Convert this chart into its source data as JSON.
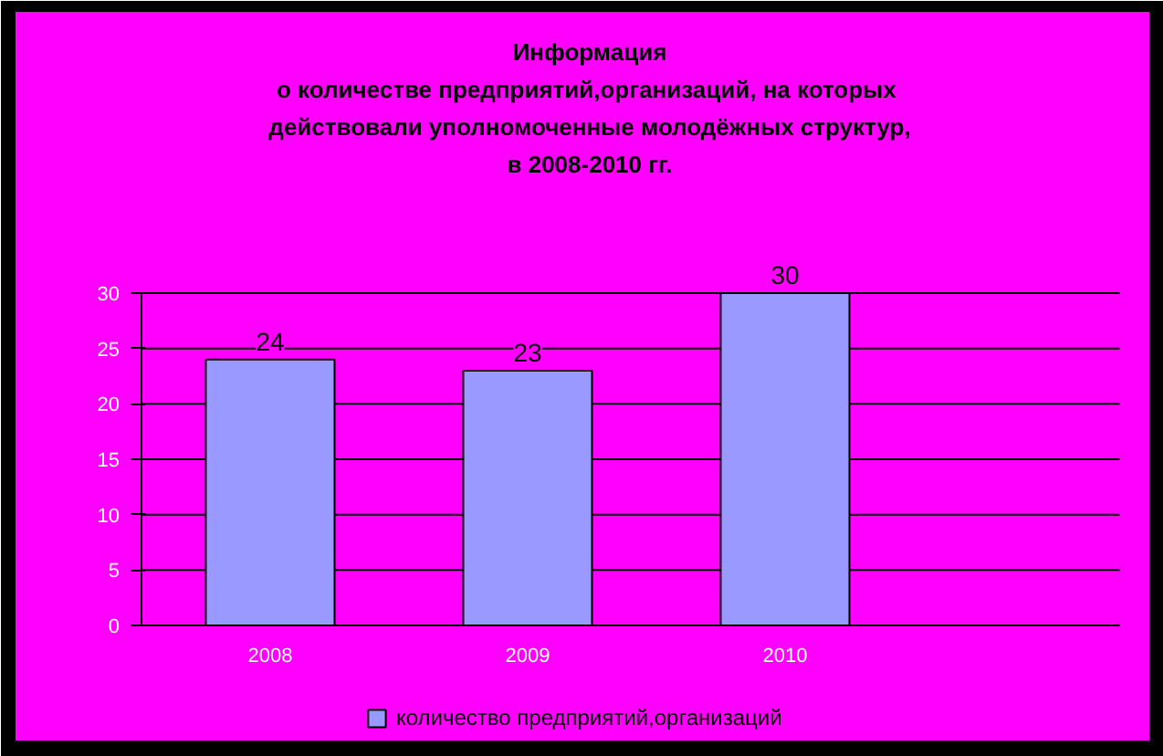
{
  "chart_data": {
    "type": "bar",
    "title": "Информация\nо количестве предприятий,организаций, на  которых\nдействовали уполномоченные молодёжных структур,\nв 2008-2010 гг.",
    "categories": [
      "2008",
      "2009",
      "2010"
    ],
    "series": [
      {
        "name": "количество предприятий,организаций",
        "color": "#9999ff",
        "values": [
          24,
          23,
          30
        ]
      }
    ],
    "ylim": [
      0,
      30
    ],
    "yticks": [
      0,
      5,
      10,
      15,
      20,
      25,
      30
    ],
    "grid": "y",
    "legend": "bottom",
    "data_labels": true
  }
}
